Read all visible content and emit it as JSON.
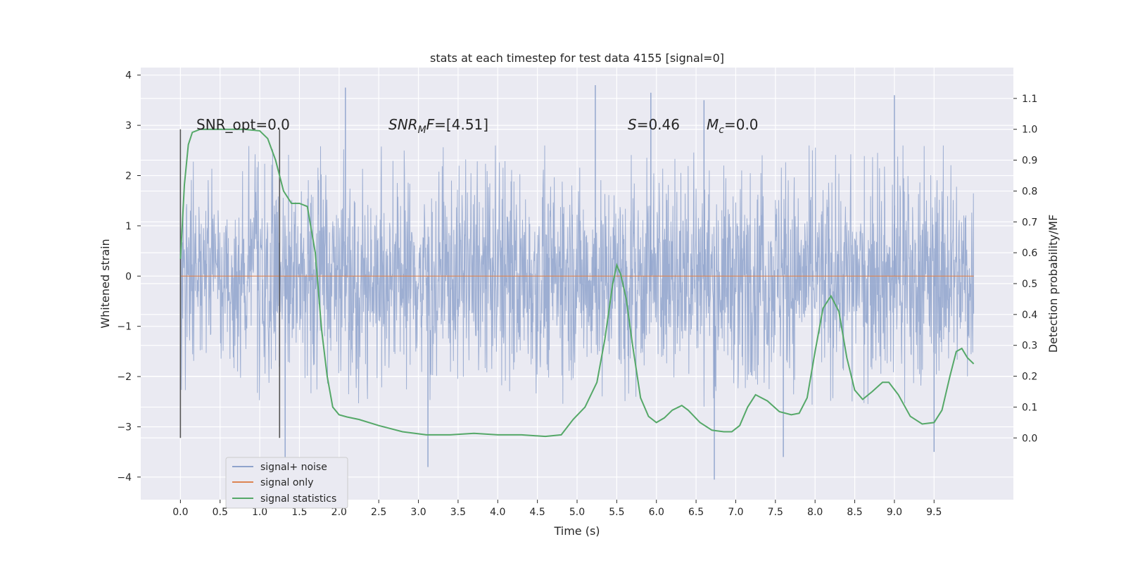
{
  "chart_data": {
    "type": "line",
    "title": "stats at each timestep for test data 4155 [signal=0]",
    "xlabel": "Time (s)",
    "ylabel_left": "Whitened strain",
    "ylabel_right": "Detection probability/MF",
    "xlim": [
      -0.5,
      10.5
    ],
    "ylim_left": [
      -4.45,
      4.15
    ],
    "ylim_right": [
      -0.2,
      1.2
    ],
    "x_ticks": [
      "0.0",
      "0.5",
      "1.0",
      "1.5",
      "2.0",
      "2.5",
      "3.0",
      "3.5",
      "4.0",
      "4.5",
      "5.0",
      "5.5",
      "6.0",
      "6.5",
      "7.0",
      "7.5",
      "8.0",
      "8.5",
      "9.0",
      "9.5"
    ],
    "y_left_ticks": [
      "4",
      "3",
      "2",
      "1",
      "0",
      "−1",
      "−2",
      "−3",
      "−4"
    ],
    "y_right_ticks": [
      "1.1",
      "1.0",
      "0.9",
      "0.8",
      "0.7",
      "0.6",
      "0.5",
      "0.4",
      "0.3",
      "0.2",
      "0.1",
      "0.0"
    ],
    "grid": true,
    "legend_position": "lower-left",
    "annotations": {
      "snr_opt": "SNR_opt=0.0",
      "snr_mf_base": "SNR",
      "snr_mf_sub": "M",
      "snr_mf_tail": "F",
      "snr_mf_value": "=[4.51]",
      "s_symbol": "S",
      "s_value": "=0.46",
      "mc_symbol": "M",
      "mc_sub": "c",
      "mc_value": "=0.0"
    },
    "vertical_markers": [
      0.0,
      1.25
    ],
    "series": [
      {
        "name": "signal+ noise",
        "color": "#8fa3cc",
        "axis": "left",
        "envelope": {
          "x": [
            0.0,
            10.0
          ],
          "core_range": [
            -1.3,
            1.3
          ],
          "typical_max": 2.6,
          "typical_min": -2.6,
          "extremes": [
            {
              "x": 2.08,
              "y": 3.75
            },
            {
              "x": 5.23,
              "y": 3.8
            },
            {
              "x": 5.93,
              "y": 3.65
            },
            {
              "x": 6.6,
              "y": 3.5
            },
            {
              "x": 9.0,
              "y": 3.6
            },
            {
              "x": 3.12,
              "y": -3.8
            },
            {
              "x": 6.73,
              "y": -4.05
            },
            {
              "x": 7.6,
              "y": -3.6
            },
            {
              "x": 9.5,
              "y": -3.5
            },
            {
              "x": 1.32,
              "y": -3.6
            }
          ]
        }
      },
      {
        "name": "signal only",
        "color": "#dd8452",
        "axis": "left",
        "x": [
          0.0,
          10.0
        ],
        "y": [
          0.0,
          0.0
        ]
      },
      {
        "name": "signal statistics",
        "color": "#55a868",
        "axis": "right",
        "x": [
          0.0,
          0.05,
          0.1,
          0.15,
          0.25,
          0.4,
          0.6,
          0.8,
          1.0,
          1.1,
          1.2,
          1.3,
          1.4,
          1.5,
          1.6,
          1.7,
          1.78,
          1.85,
          1.92,
          2.0,
          2.1,
          2.25,
          2.5,
          2.8,
          3.1,
          3.4,
          3.7,
          4.0,
          4.3,
          4.6,
          4.8,
          4.95,
          5.1,
          5.25,
          5.35,
          5.45,
          5.5,
          5.55,
          5.62,
          5.7,
          5.8,
          5.9,
          6.0,
          6.1,
          6.2,
          6.32,
          6.4,
          6.55,
          6.7,
          6.85,
          6.95,
          7.05,
          7.15,
          7.25,
          7.4,
          7.55,
          7.7,
          7.8,
          7.9,
          8.0,
          8.1,
          8.2,
          8.3,
          8.4,
          8.5,
          8.6,
          8.72,
          8.85,
          8.93,
          9.05,
          9.2,
          9.35,
          9.5,
          9.6,
          9.7,
          9.78,
          9.85,
          9.92,
          10.0
        ],
        "y": [
          0.58,
          0.82,
          0.95,
          0.99,
          1.0,
          1.0,
          1.0,
          1.0,
          0.995,
          0.97,
          0.9,
          0.8,
          0.76,
          0.76,
          0.75,
          0.6,
          0.35,
          0.2,
          0.1,
          0.075,
          0.068,
          0.06,
          0.04,
          0.02,
          0.01,
          0.01,
          0.015,
          0.01,
          0.01,
          0.005,
          0.01,
          0.06,
          0.1,
          0.18,
          0.32,
          0.5,
          0.56,
          0.53,
          0.45,
          0.3,
          0.13,
          0.07,
          0.05,
          0.065,
          0.09,
          0.105,
          0.09,
          0.05,
          0.025,
          0.02,
          0.02,
          0.04,
          0.1,
          0.14,
          0.12,
          0.085,
          0.075,
          0.08,
          0.13,
          0.28,
          0.42,
          0.46,
          0.41,
          0.26,
          0.155,
          0.125,
          0.15,
          0.18,
          0.18,
          0.14,
          0.07,
          0.045,
          0.05,
          0.09,
          0.2,
          0.28,
          0.29,
          0.26,
          0.24
        ]
      }
    ]
  }
}
